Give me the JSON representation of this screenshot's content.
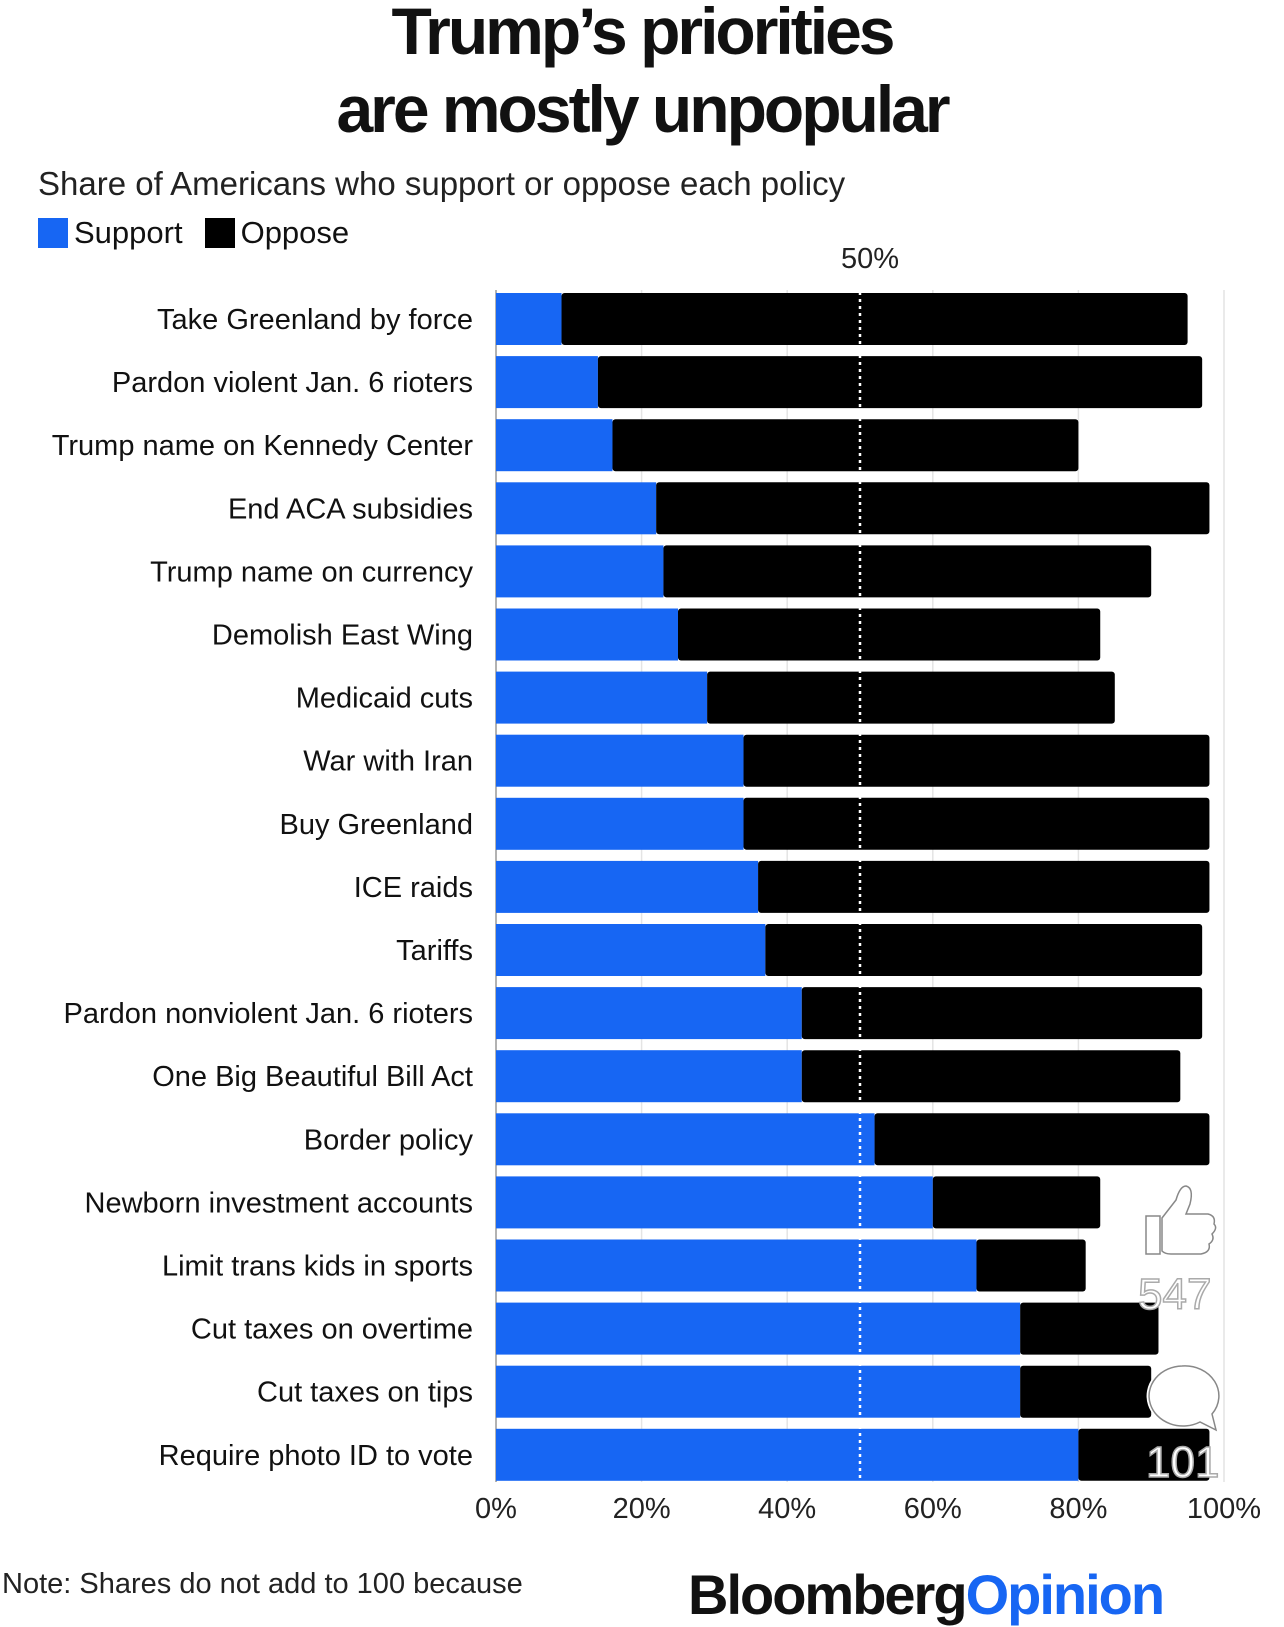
{
  "chart_data": {
    "type": "bar",
    "stacked": true,
    "orientation": "horizontal",
    "title": "Trump's priorities are mostly unpopular",
    "title_lines": [
      "Trump’s priorities",
      "are mostly unpopular"
    ],
    "subtitle": "Share of Americans who support or oppose each policy",
    "categories": [
      "Take Greenland by force",
      "Pardon violent Jan. 6 rioters",
      "Trump name on Kennedy Center",
      "End ACA subsidies",
      "Trump name on currency",
      "Demolish East Wing",
      "Medicaid cuts",
      "War with Iran",
      "Buy Greenland",
      "ICE raids",
      "Tariffs",
      "Pardon nonviolent Jan. 6 rioters",
      "One Big Beautiful Bill Act",
      "Border policy",
      "Newborn investment accounts",
      "Limit trans kids in sports",
      "Cut taxes on overtime",
      "Cut taxes on tips",
      "Require photo ID to vote"
    ],
    "series": [
      {
        "name": "Support",
        "color": "#1766f3",
        "values": [
          9,
          14,
          16,
          22,
          23,
          25,
          29,
          34,
          34,
          36,
          37,
          42,
          42,
          52,
          60,
          66,
          72,
          72,
          80
        ]
      },
      {
        "name": "Oppose",
        "color": "#000000",
        "values": [
          86,
          83,
          64,
          76,
          67,
          58,
          56,
          64,
          64,
          62,
          60,
          55,
          52,
          46,
          23,
          15,
          19,
          18,
          18
        ]
      }
    ],
    "xlim": [
      0,
      100
    ],
    "xticks": [
      "0%",
      "20%",
      "40%",
      "60%",
      "80%",
      "100%"
    ],
    "reference_line": {
      "value": 50,
      "label": "50%",
      "style": "dotted"
    },
    "legend": "top-left",
    "grid": true,
    "note": "Note: Shares do not add to 100 because",
    "source_logo": {
      "part1": "Bloomberg",
      "part2": "Opinion"
    }
  },
  "overlay": {
    "like_count": "547",
    "comment_count": "101",
    "icons": [
      "thumbs-up-icon",
      "comment-icon"
    ]
  }
}
